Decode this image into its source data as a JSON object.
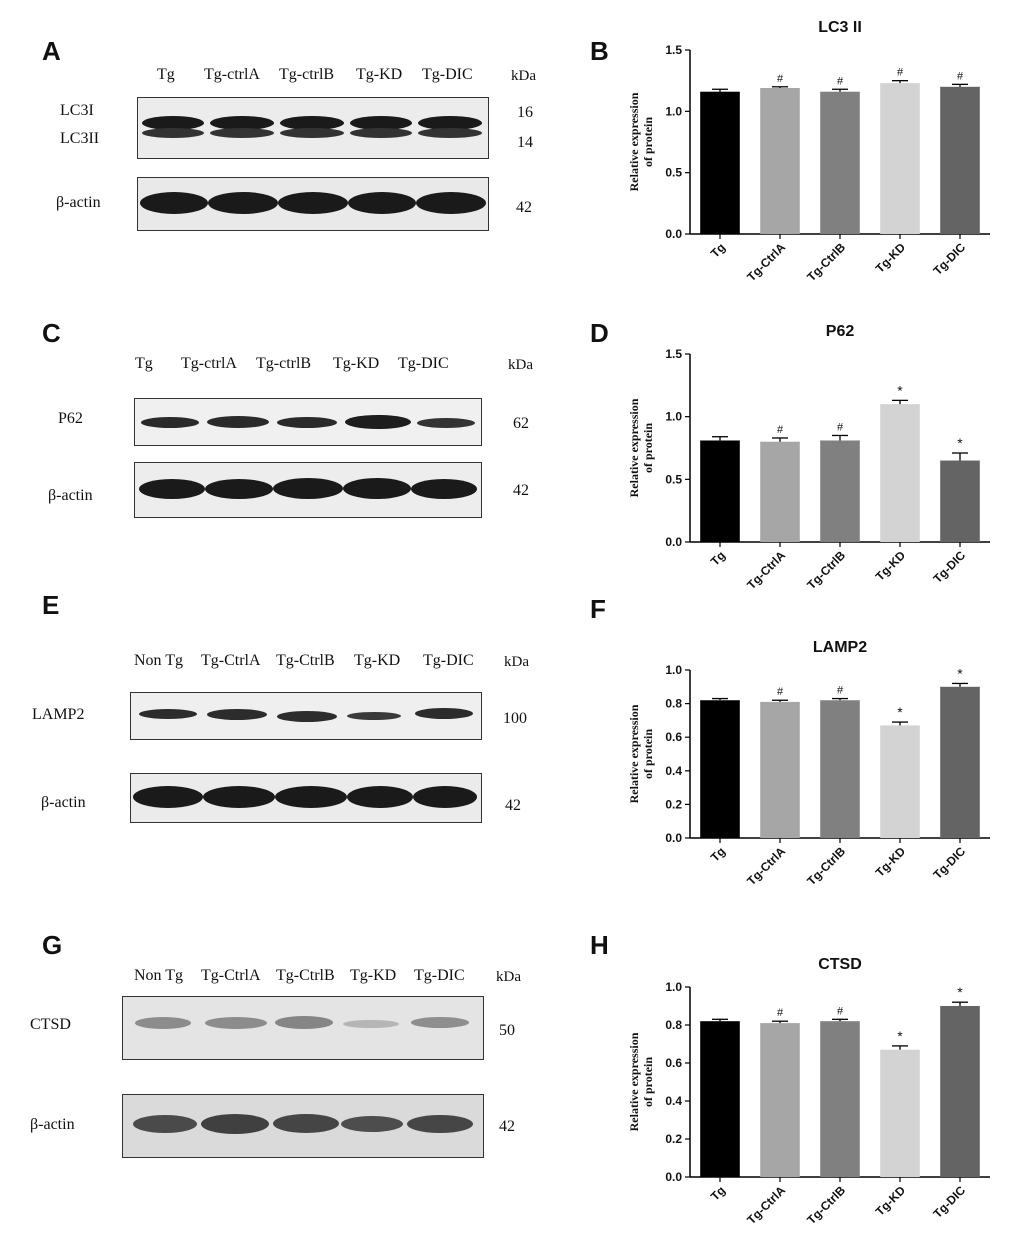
{
  "panels": {
    "A": "A",
    "B": "B",
    "C": "C",
    "D": "D",
    "E": "E",
    "F": "F",
    "G": "G",
    "H": "H"
  },
  "blots": {
    "A": {
      "lanes": [
        "Tg",
        "Tg-ctrlA",
        "Tg-ctrlB",
        "Tg-KD",
        "Tg-DIC"
      ],
      "kda": "kDa",
      "rows": [
        {
          "labels": [
            "LC3I",
            "LC3II"
          ],
          "mw": [
            "16",
            "14"
          ]
        },
        {
          "labels": [
            "β-actin"
          ],
          "mw": [
            "42"
          ]
        }
      ]
    },
    "C": {
      "lanes": [
        "Tg",
        "Tg-ctrlA",
        "Tg-ctrlB",
        "Tg-KD",
        "Tg-DIC"
      ],
      "kda": "kDa",
      "rows": [
        {
          "labels": [
            "P62"
          ],
          "mw": [
            "62"
          ]
        },
        {
          "labels": [
            "β-actin"
          ],
          "mw": [
            "42"
          ]
        }
      ]
    },
    "E": {
      "lanes": [
        "Non Tg",
        "Tg-CtrlA",
        "Tg-CtrlB",
        "Tg-KD",
        "Tg-DIC"
      ],
      "kda": "kDa",
      "rows": [
        {
          "labels": [
            "LAMP2"
          ],
          "mw": [
            "100"
          ]
        },
        {
          "labels": [
            "β-actin"
          ],
          "mw": [
            "42"
          ]
        }
      ]
    },
    "G": {
      "lanes": [
        "Non Tg",
        "Tg-CtrlA",
        "Tg-CtrlB",
        "Tg-KD",
        "Tg-DIC"
      ],
      "kda": "kDa",
      "rows": [
        {
          "labels": [
            "CTSD"
          ],
          "mw": [
            "50"
          ]
        },
        {
          "labels": [
            "β-actin"
          ],
          "mw": [
            "42"
          ]
        }
      ]
    }
  },
  "chart_data": [
    {
      "panel": "B",
      "type": "bar",
      "title": "LC3 II",
      "ylabel": "Relative expression of protein",
      "categories": [
        "Tg",
        "Tg-CtrlA",
        "Tg-CtrlB",
        "Tg-KD",
        "Tg-DIC"
      ],
      "values": [
        1.16,
        1.19,
        1.16,
        1.23,
        1.2
      ],
      "errors": [
        0.02,
        0.01,
        0.02,
        0.02,
        0.02
      ],
      "marks": [
        "",
        "#",
        "#",
        "#",
        "#"
      ],
      "ylim": [
        0,
        1.5
      ],
      "yticks": [
        "0.0",
        "0.5",
        "1.0",
        "1.5"
      ],
      "colors": [
        "#000000",
        "#a6a6a6",
        "#808080",
        "#d3d3d3",
        "#646464"
      ]
    },
    {
      "panel": "D",
      "type": "bar",
      "title": "P62",
      "ylabel": "Relative expression of protein",
      "categories": [
        "Tg",
        "Tg-CtrlA",
        "Tg-CtrlB",
        "Tg-KD",
        "Tg-DIC"
      ],
      "values": [
        0.81,
        0.8,
        0.81,
        1.1,
        0.65
      ],
      "errors": [
        0.03,
        0.03,
        0.04,
        0.03,
        0.06
      ],
      "marks": [
        "",
        "#",
        "#",
        "*",
        "*"
      ],
      "ylim": [
        0,
        1.5
      ],
      "yticks": [
        "0.0",
        "0.5",
        "1.0",
        "1.5"
      ],
      "colors": [
        "#000000",
        "#a6a6a6",
        "#808080",
        "#d3d3d3",
        "#646464"
      ]
    },
    {
      "panel": "F",
      "type": "bar",
      "title": "LAMP2",
      "ylabel": "Relative expression of protein",
      "categories": [
        "Tg",
        "Tg-CtrlA",
        "Tg-CtrlB",
        "Tg-KD",
        "Tg-DIC"
      ],
      "values": [
        0.82,
        0.81,
        0.82,
        0.67,
        0.9
      ],
      "errors": [
        0.01,
        0.01,
        0.01,
        0.02,
        0.02
      ],
      "marks": [
        "",
        "#",
        "#",
        "*",
        "*"
      ],
      "ylim": [
        0,
        1.0
      ],
      "yticks": [
        "0.0",
        "0.2",
        "0.4",
        "0.6",
        "0.8",
        "1.0"
      ],
      "colors": [
        "#000000",
        "#a6a6a6",
        "#808080",
        "#d3d3d3",
        "#646464"
      ]
    },
    {
      "panel": "H",
      "type": "bar",
      "title": "CTSD",
      "ylabel": "Relative expression of protein",
      "categories": [
        "Tg",
        "Tg-CtrlA",
        "Tg-CtrlB",
        "Tg-KD",
        "Tg-DIC"
      ],
      "values": [
        0.82,
        0.81,
        0.82,
        0.67,
        0.9
      ],
      "errors": [
        0.01,
        0.01,
        0.01,
        0.02,
        0.02
      ],
      "marks": [
        "",
        "#",
        "#",
        "*",
        "*"
      ],
      "ylim": [
        0,
        1.0
      ],
      "yticks": [
        "0.0",
        "0.2",
        "0.4",
        "0.6",
        "0.8",
        "1.0"
      ],
      "colors": [
        "#000000",
        "#a6a6a6",
        "#808080",
        "#d3d3d3",
        "#646464"
      ]
    }
  ]
}
